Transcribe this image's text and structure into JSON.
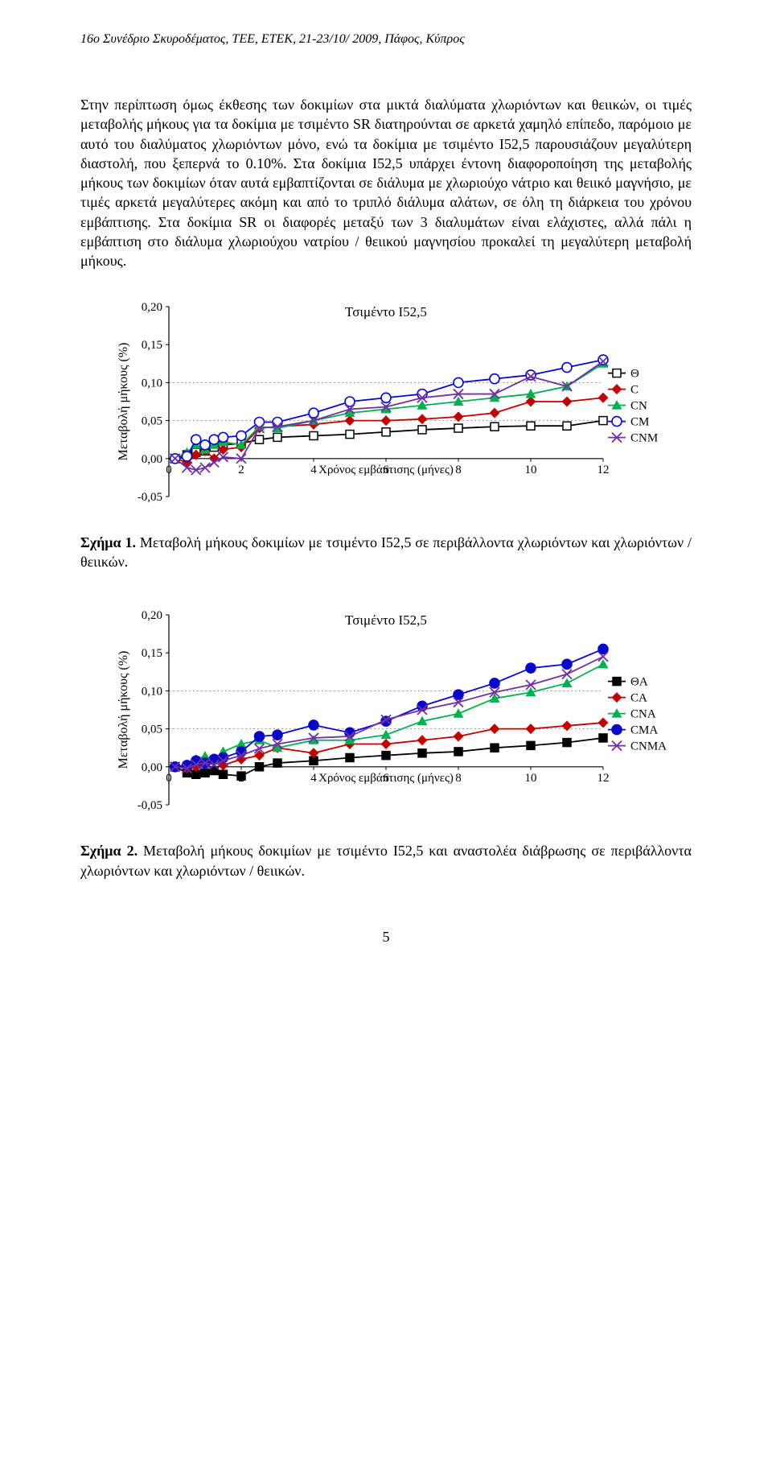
{
  "header": {
    "text": "16ο Συνέδριο Σκυροδέματος, ΤΕΕ, ΕΤΕΚ, 21-23/10/ 2009, Πάφος, Κύπρος"
  },
  "paragraph": {
    "text": "Στην περίπτωση όμως έκθεσης των δοκιμίων στα μικτά διαλύματα χλωριόντων και θειικών, οι τιμές μεταβολής μήκους για τα δοκίμια με τσιμέντο SR διατηρούνται σε αρκετά χαμηλό επίπεδο, παρόμοιο με αυτό του διαλύματος χλωριόντων μόνο, ενώ τα δοκίμια με τσιμέντο I52,5 παρουσιάζουν μεγαλύτερη διαστολή, που ξεπερνά το 0.10%. Στα δοκίμια I52,5 υπάρχει έντονη διαφοροποίηση της μεταβολής μήκους των δοκιμίων όταν αυτά εμβαπτίζονται σε διάλυμα με χλωριούχο νάτριο και θειικό μαγνήσιο, με τιμές αρκετά μεγαλύτερες ακόμη και από το τριπλό διάλυμα αλάτων, σε όλη τη διάρκεια του χρόνου εμβάπτισης. Στα δοκίμια SR οι διαφορές μεταξύ των 3 διαλυμάτων είναι ελάχιστες, αλλά πάλι η εμβάπτιση στο διάλυμα χλωριούχου νατρίου / θειικού μαγνησίου προκαλεί τη μεγαλύτερη μεταβολή μήκους."
  },
  "chart1": {
    "type": "line",
    "title": "Τσιμέντο I52,5",
    "title_fontsize": 17,
    "xlabel": "Χρόνος εμβάπτισης (μήνες)",
    "ylabel": "Μεταβολή μήκους (%)",
    "label_fontsize": 16,
    "tick_fontsize": 15,
    "xlim": [
      0,
      12
    ],
    "ylim": [
      -0.05,
      0.2
    ],
    "xtick_step": 2,
    "ytick_step": 0.05,
    "background_color": "#ffffff",
    "grid_color": "#808080",
    "grid_dash": "2 3",
    "axis_color": "#000000",
    "line_width": 1.8,
    "marker_size": 5,
    "series": [
      {
        "name": "Θ",
        "color": "#000000",
        "marker": "square_open",
        "x": [
          0.17,
          0.5,
          0.75,
          1,
          1.25,
          1.5,
          2,
          2.5,
          3,
          4,
          5,
          6,
          7,
          8,
          9,
          10,
          11,
          12
        ],
        "y": [
          0.0,
          0.005,
          0.008,
          0.01,
          0.015,
          0.018,
          0.02,
          0.025,
          0.028,
          0.03,
          0.032,
          0.035,
          0.038,
          0.04,
          0.042,
          0.043,
          0.043,
          0.05
        ]
      },
      {
        "name": "C",
        "color": "#c00000",
        "marker": "diamond",
        "x": [
          0.17,
          0.5,
          0.75,
          1,
          1.25,
          1.5,
          2,
          2.5,
          3,
          4,
          5,
          6,
          7,
          8,
          9,
          10,
          11,
          12
        ],
        "y": [
          0.0,
          -0.005,
          0.005,
          0.01,
          0.0,
          0.012,
          0.015,
          0.04,
          0.042,
          0.045,
          0.05,
          0.05,
          0.052,
          0.055,
          0.06,
          0.075,
          0.075,
          0.08
        ]
      },
      {
        "name": "CN",
        "color": "#00b050",
        "marker": "triangle",
        "x": [
          0.17,
          0.5,
          0.75,
          1,
          1.25,
          1.5,
          2,
          2.5,
          3,
          4,
          5,
          6,
          7,
          8,
          9,
          10,
          11,
          12
        ],
        "y": [
          0.0,
          0.008,
          0.018,
          0.012,
          0.018,
          0.022,
          0.018,
          0.042,
          0.04,
          0.05,
          0.06,
          0.065,
          0.07,
          0.075,
          0.08,
          0.085,
          0.095,
          0.125
        ]
      },
      {
        "name": "CM",
        "color": "#0707c9",
        "marker": "circle_open",
        "x": [
          0.17,
          0.5,
          0.75,
          1,
          1.25,
          1.5,
          2,
          2.5,
          3,
          4,
          5,
          6,
          7,
          8,
          9,
          10,
          11,
          12
        ],
        "y": [
          0.0,
          0.003,
          0.025,
          0.018,
          0.025,
          0.028,
          0.03,
          0.048,
          0.048,
          0.06,
          0.075,
          0.08,
          0.085,
          0.1,
          0.105,
          0.11,
          0.12,
          0.13
        ]
      },
      {
        "name": "CNM",
        "color": "#7030a0",
        "marker": "x",
        "x": [
          0.17,
          0.5,
          0.75,
          1,
          1.25,
          1.5,
          2,
          2.5,
          3,
          4,
          5,
          6,
          7,
          8,
          9,
          10,
          11,
          12
        ],
        "y": [
          0.0,
          -0.012,
          -0.015,
          -0.012,
          -0.005,
          0.002,
          0.0,
          0.04,
          0.042,
          0.05,
          0.065,
          0.068,
          0.08,
          0.085,
          0.085,
          0.108,
          0.095,
          0.128
        ]
      }
    ]
  },
  "caption1": {
    "label": "Σχήμα 1.",
    "text": " Μεταβολή μήκους δοκιμίων με τσιμέντο I52,5 σε περιβάλλοντα χλωριόντων και χλωριόντων / θειικών."
  },
  "chart2": {
    "type": "line",
    "title": "Τσιμέντο I52,5",
    "title_fontsize": 17,
    "xlabel": "Χρόνος εμβάπτισης (μήνες)",
    "ylabel": "Μεταβολή μήκους (%)",
    "label_fontsize": 16,
    "tick_fontsize": 15,
    "xlim": [
      0,
      12
    ],
    "ylim": [
      -0.05,
      0.2
    ],
    "xtick_step": 2,
    "ytick_step": 0.05,
    "background_color": "#ffffff",
    "grid_color": "#808080",
    "grid_dash": "2 3",
    "axis_color": "#000000",
    "line_width": 1.8,
    "marker_size": 5,
    "series": [
      {
        "name": "ΘA",
        "color": "#000000",
        "marker": "square",
        "x": [
          0.17,
          0.5,
          0.75,
          1,
          1.25,
          1.5,
          2,
          2.5,
          3,
          4,
          5,
          6,
          7,
          8,
          9,
          10,
          11,
          12
        ],
        "y": [
          0.0,
          -0.008,
          -0.01,
          -0.008,
          -0.005,
          -0.01,
          -0.012,
          0.0,
          0.005,
          0.008,
          0.012,
          0.015,
          0.018,
          0.02,
          0.025,
          0.028,
          0.032,
          0.038
        ]
      },
      {
        "name": "CA",
        "color": "#c00000",
        "marker": "diamond",
        "x": [
          0.17,
          0.5,
          0.75,
          1,
          1.25,
          1.5,
          2,
          2.5,
          3,
          4,
          5,
          6,
          7,
          8,
          9,
          10,
          11,
          12
        ],
        "y": [
          0.0,
          -0.002,
          0.0,
          0.005,
          0.008,
          0.002,
          0.01,
          0.015,
          0.025,
          0.018,
          0.03,
          0.03,
          0.035,
          0.04,
          0.05,
          0.05,
          0.054,
          0.058
        ]
      },
      {
        "name": "CNA",
        "color": "#00b050",
        "marker": "triangle",
        "x": [
          0.17,
          0.5,
          0.75,
          1,
          1.25,
          1.5,
          2,
          2.5,
          3,
          4,
          5,
          6,
          7,
          8,
          9,
          10,
          11,
          12
        ],
        "y": [
          0.0,
          0.003,
          0.01,
          0.014,
          0.008,
          0.02,
          0.03,
          0.035,
          0.025,
          0.035,
          0.035,
          0.042,
          0.06,
          0.07,
          0.09,
          0.098,
          0.11,
          0.135
        ]
      },
      {
        "name": "CMA",
        "color": "#0707c9",
        "marker": "circle",
        "x": [
          0.17,
          0.5,
          0.75,
          1,
          1.25,
          1.5,
          2,
          2.5,
          3,
          4,
          5,
          6,
          7,
          8,
          9,
          10,
          11,
          12
        ],
        "y": [
          0.0,
          0.002,
          0.008,
          0.005,
          0.01,
          0.012,
          0.02,
          0.04,
          0.042,
          0.055,
          0.045,
          0.06,
          0.08,
          0.095,
          0.11,
          0.13,
          0.135,
          0.155
        ]
      },
      {
        "name": "CNMA",
        "color": "#7030a0",
        "marker": "x",
        "x": [
          0.17,
          0.5,
          0.75,
          1,
          1.25,
          1.5,
          2,
          2.5,
          3,
          4,
          5,
          6,
          7,
          8,
          9,
          10,
          11,
          12
        ],
        "y": [
          0.0,
          -0.002,
          0.003,
          0.005,
          0.003,
          0.008,
          0.015,
          0.024,
          0.03,
          0.038,
          0.04,
          0.062,
          0.075,
          0.085,
          0.098,
          0.108,
          0.122,
          0.145
        ]
      }
    ]
  },
  "caption2": {
    "label": "Σχήμα 2.",
    "text": " Μεταβολή μήκους δοκιμίων με τσιμέντο I52,5 και αναστολέα διάβρωσης σε περιβάλλοντα χλωριόντων και χλωριόντων / θειικών."
  },
  "page_number": "5"
}
